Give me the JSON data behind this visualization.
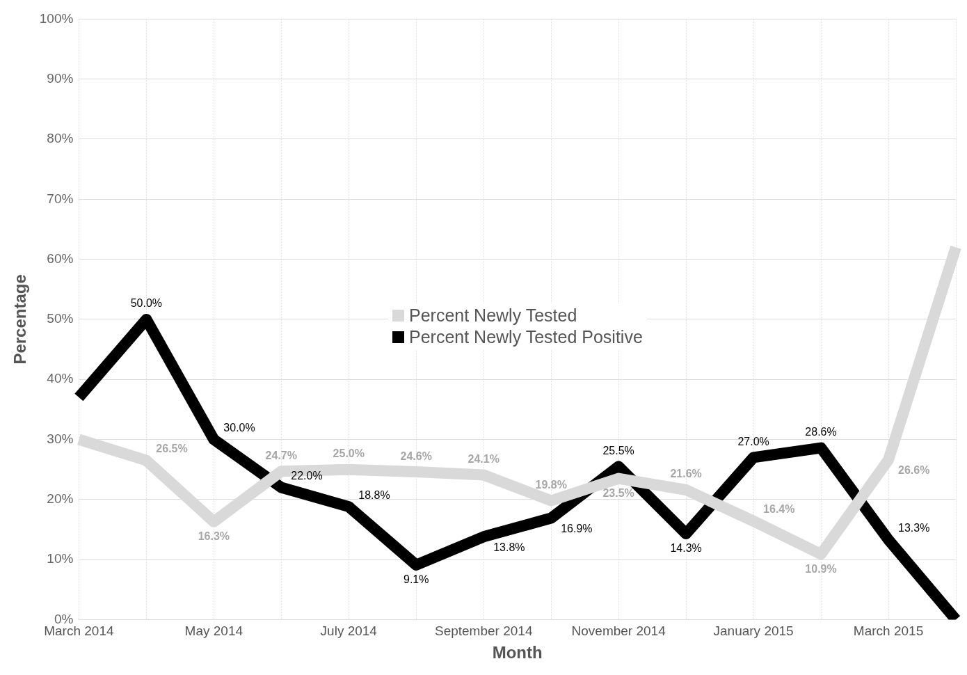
{
  "chart_data": {
    "type": "line",
    "xlabel": "Month",
    "ylabel": "Percentage",
    "categories": [
      "March 2014",
      null,
      "May 2014",
      null,
      "July 2014",
      null,
      "September 2014",
      null,
      "November 2014",
      null,
      "January 2015",
      null,
      "March 2015",
      null
    ],
    "series": [
      {
        "name": "Percent Newly Tested",
        "color": "#d9d9d9",
        "values": [
          30,
          26.5,
          16.3,
          24.7,
          25.0,
          24.6,
          24.1,
          19.8,
          23.5,
          21.6,
          16.4,
          10.9,
          26.6,
          62
        ],
        "value_labels": [
          null,
          "26.5%",
          "16.3%",
          "24.7%",
          "25.0%",
          "24.6%",
          "24.1%",
          "19.8%",
          "23.5%",
          "21.6%",
          "16.4%",
          "10.9%",
          "26.6%",
          null
        ]
      },
      {
        "name": "Percent Newly Tested Positive",
        "color": "#000000",
        "values": [
          37,
          50.0,
          30.0,
          22.0,
          18.8,
          9.1,
          13.8,
          16.9,
          25.5,
          14.3,
          27.0,
          28.6,
          13.3,
          0
        ],
        "value_labels": [
          null,
          "50.0%",
          "30.0%",
          "22.0%",
          "18.8%",
          "9.1%",
          "13.8%",
          "16.9%",
          "25.5%",
          "14.3%",
          "27.0%",
          "28.6%",
          "13.3%",
          null
        ]
      }
    ],
    "ylim": [
      0,
      100
    ],
    "yticks": [
      {
        "value": 0,
        "label": "0%"
      },
      {
        "value": 10,
        "label": "10%"
      },
      {
        "value": 20,
        "label": "20%"
      },
      {
        "value": 30,
        "label": "30%"
      },
      {
        "value": 40,
        "label": "40%"
      },
      {
        "value": 50,
        "label": "50%"
      },
      {
        "value": 60,
        "label": "60%"
      },
      {
        "value": 70,
        "label": "70%"
      },
      {
        "value": 80,
        "label": "80%"
      },
      {
        "value": 90,
        "label": "90%"
      },
      {
        "value": 100,
        "label": "100%"
      }
    ],
    "grid": true,
    "legend": "center",
    "marker": "none",
    "line_style": "solid"
  }
}
